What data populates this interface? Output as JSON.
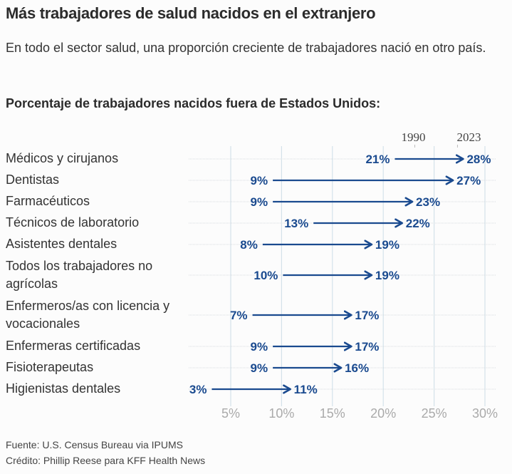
{
  "header": {
    "title": "Más trabajadores de salud nacidos en el extranjero",
    "subtitle": "En todo el sector salud, una proporción creciente de trabajadores nació en otro país.",
    "chart_heading": "Porcentaje de trabajadores nacidos fuera de Estados Unidos:"
  },
  "colors": {
    "arrow": "#1a4a8f",
    "value_text": "#1a4a8f",
    "gridline": "#d4e2ea",
    "row_line": "#d8dde0",
    "tick_text": "#aaaaaa"
  },
  "chart_data": {
    "type": "arrow-dumbbell",
    "title": "Porcentaje de trabajadores nacidos fuera de Estados Unidos:",
    "legend": {
      "start": "1990",
      "end": "2023",
      "placement": "top"
    },
    "xlabel": "",
    "ylabel": "",
    "xlim": [
      0,
      30
    ],
    "xticks": [
      5,
      10,
      15,
      20,
      25,
      30
    ],
    "xtick_labels": [
      "5%",
      "10%",
      "15%",
      "20%",
      "25%",
      "30%"
    ],
    "grid": true,
    "categories": [
      "Médicos y cirujanos",
      "Dentistas",
      "Farmacéuticos",
      "Técnicos de laboratorio",
      "Asistentes dentales",
      "Todos los trabajadores no agrícolas",
      "Enfermeros/as con licencia y vocacionales",
      "Enfermeras certificadas",
      "Fisioterapeutas",
      "Higienistas dentales"
    ],
    "series": [
      {
        "name": "1990",
        "values": [
          21,
          9,
          9,
          13,
          8,
          10,
          7,
          9,
          9,
          3
        ]
      },
      {
        "name": "2023",
        "values": [
          28,
          27,
          23,
          22,
          19,
          19,
          17,
          17,
          16,
          11
        ]
      }
    ],
    "value_labels": {
      "1990": [
        "21%",
        "9%",
        "9%",
        "13%",
        "8%",
        "10%",
        "7%",
        "9%",
        "9%",
        "3%"
      ],
      "2023": [
        "28%",
        "27%",
        "23%",
        "22%",
        "19%",
        "19%",
        "17%",
        "17%",
        "16%",
        "11%"
      ]
    }
  },
  "rows": [
    {
      "label_lines": [
        "Médicos y cirujanos"
      ]
    },
    {
      "label_lines": [
        "Dentistas"
      ]
    },
    {
      "label_lines": [
        "Farmacéuticos"
      ]
    },
    {
      "label_lines": [
        "Técnicos de laboratorio"
      ]
    },
    {
      "label_lines": [
        "Asistentes dentales"
      ]
    },
    {
      "label_lines": [
        "Todos los trabajadores no",
        "agrícolas"
      ]
    },
    {
      "label_lines": [
        "Enfermeros/as con licencia y",
        "vocacionales"
      ]
    },
    {
      "label_lines": [
        "Enfermeras certificadas"
      ]
    },
    {
      "label_lines": [
        "Fisioterapeutas"
      ]
    },
    {
      "label_lines": [
        "Higienistas dentales"
      ]
    }
  ],
  "footer": {
    "source": "Fuente: U.S. Census Bureau via IPUMS",
    "credit": "Crédito: Phillip Reese para KFF Health News"
  }
}
